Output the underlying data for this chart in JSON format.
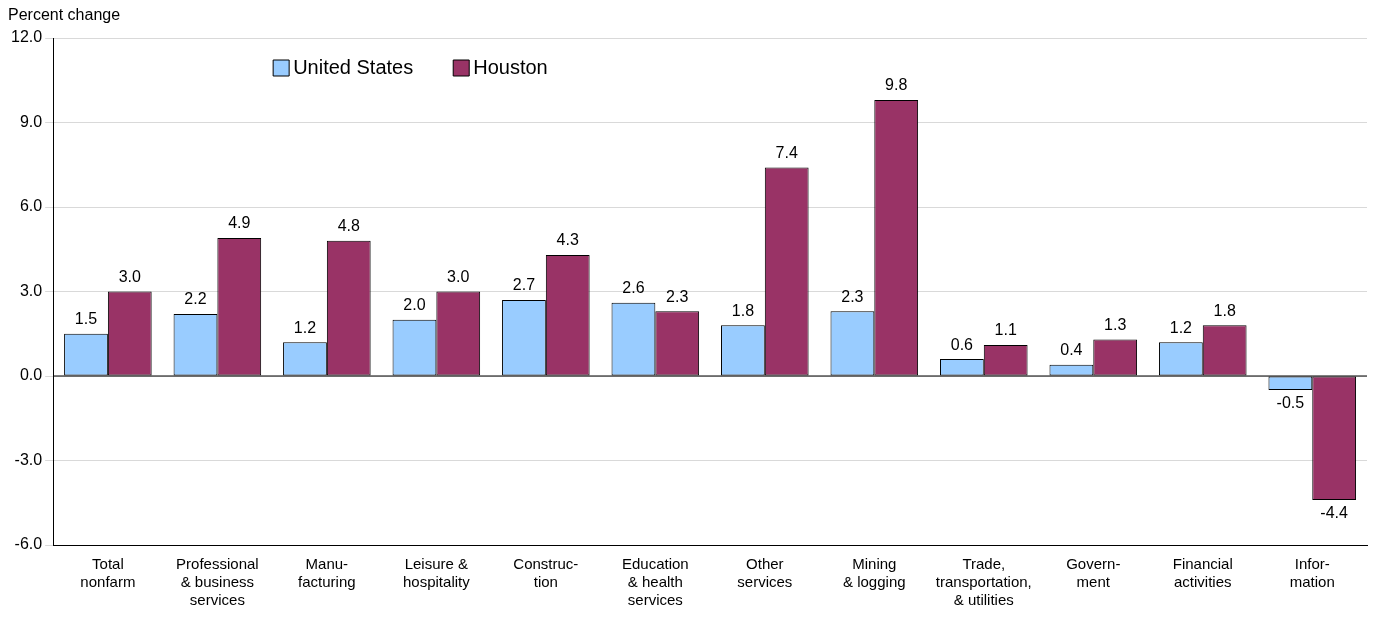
{
  "chart_data": {
    "type": "bar",
    "ylabel": "Percent change",
    "categories": [
      "Total\nnonfarm",
      "Professional\n& business\nservices",
      "Manu-\nfacturing",
      "Leisure &\nhospitality",
      "Construc-\ntion",
      "Education\n& health\nservices",
      "Other\nservices",
      "Mining\n& logging",
      "Trade,\ntransportation,\n& utilities",
      "Govern-\nment",
      "Financial\nactivities",
      "Infor-\nmation"
    ],
    "series": [
      {
        "name": "United States",
        "color": "#99ccff",
        "values": [
          1.5,
          2.2,
          1.2,
          2.0,
          2.7,
          2.6,
          1.8,
          2.3,
          0.6,
          0.4,
          1.2,
          -0.5
        ],
        "value_labels": [
          "1.5",
          "2.2",
          "1.2",
          "2.0",
          "2.7",
          "2.6",
          "1.8",
          "2.3",
          "0.6",
          "0.4",
          "1.2",
          "-0.5"
        ]
      },
      {
        "name": "Houston",
        "color": "#993366",
        "values": [
          3.0,
          4.9,
          4.8,
          3.0,
          4.3,
          2.3,
          7.4,
          9.8,
          1.1,
          1.3,
          1.8,
          -4.4
        ],
        "value_labels": [
          "3.0",
          "4.9",
          "4.8",
          "3.0",
          "4.3",
          "2.3",
          "7.4",
          "9.8",
          "1.1",
          "1.3",
          "1.8",
          "-4.4"
        ]
      }
    ],
    "ylim": [
      -6,
      12
    ],
    "yticks": [
      {
        "value": -6,
        "label": "-6.0"
      },
      {
        "value": -3,
        "label": "-3.0"
      },
      {
        "value": 0,
        "label": "0.0"
      },
      {
        "value": 3,
        "label": "3.0"
      },
      {
        "value": 6,
        "label": "6.0"
      },
      {
        "value": 9,
        "label": "9.0"
      },
      {
        "value": 12,
        "label": "12.0"
      }
    ],
    "grid": "y",
    "legend": "top left"
  }
}
